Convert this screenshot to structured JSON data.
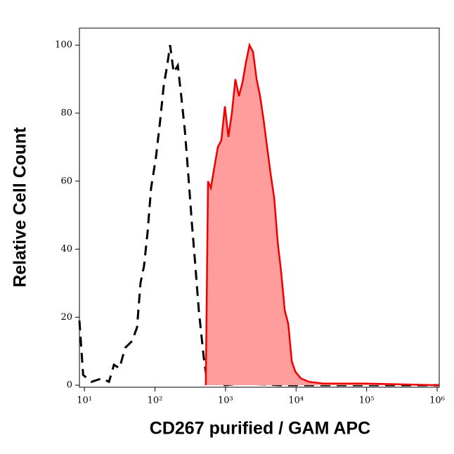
{
  "chart_data": {
    "type": "histogram-line",
    "x_label": "CD267 purified  / GAM APC",
    "y_label": "Relative Cell Count",
    "x_scale": "log",
    "xlim": [
      8.5,
      1070000
    ],
    "ylim": [
      -0.6,
      105
    ],
    "xticks": [
      {
        "value": 10,
        "label": "10¹"
      },
      {
        "value": 100,
        "label": "10²"
      },
      {
        "value": 1000,
        "label": "10³"
      },
      {
        "value": 10000,
        "label": "10⁴"
      },
      {
        "value": 100000,
        "label": "10⁵"
      },
      {
        "value": 1000000,
        "label": "10⁶"
      }
    ],
    "yticks": [
      0,
      20,
      40,
      60,
      80,
      100
    ],
    "series": [
      {
        "color": "#000000",
        "dash": true,
        "x": [
          8.5,
          9.6,
          12.6,
          17.7,
          22.3,
          26.2,
          31.4,
          37.8,
          47.5,
          55.7,
          62.4,
          70,
          78.6,
          88.1,
          103.4,
          118.8,
          133,
          149,
          164,
          184,
          211,
          236,
          265,
          297,
          333,
          374,
          419,
          493,
          550,
          694,
          980,
          1740,
          6100,
          1070000
        ],
        "values": [
          19,
          3,
          1,
          2,
          1,
          6,
          5,
          11,
          13,
          17,
          30,
          35,
          45,
          58,
          67,
          78,
          88,
          94,
          100,
          92,
          94,
          85,
          75,
          62,
          48,
          35,
          22,
          8,
          1,
          1,
          0,
          0.5,
          0,
          0
        ]
      },
      {
        "color": "#ee0000",
        "fill": "#ff9c9c",
        "x": [
          525,
          565,
          620,
          694,
          778,
          873,
          980,
          1100,
          1230,
          1380,
          1550,
          1740,
          1950,
          2190,
          2460,
          2760,
          3090,
          3470,
          3890,
          4370,
          4900,
          5500,
          6170,
          6920,
          7760,
          8710,
          9770,
          11700,
          15300,
          24200,
          96000,
          1070000
        ],
        "values": [
          0,
          60,
          58,
          64,
          70,
          72,
          82,
          73,
          80,
          90,
          85,
          89,
          95,
          100,
          98,
          90,
          85,
          78,
          70,
          62,
          55,
          42,
          33,
          22,
          18,
          7,
          4,
          2,
          1,
          0.5,
          0.5,
          0
        ]
      }
    ]
  }
}
